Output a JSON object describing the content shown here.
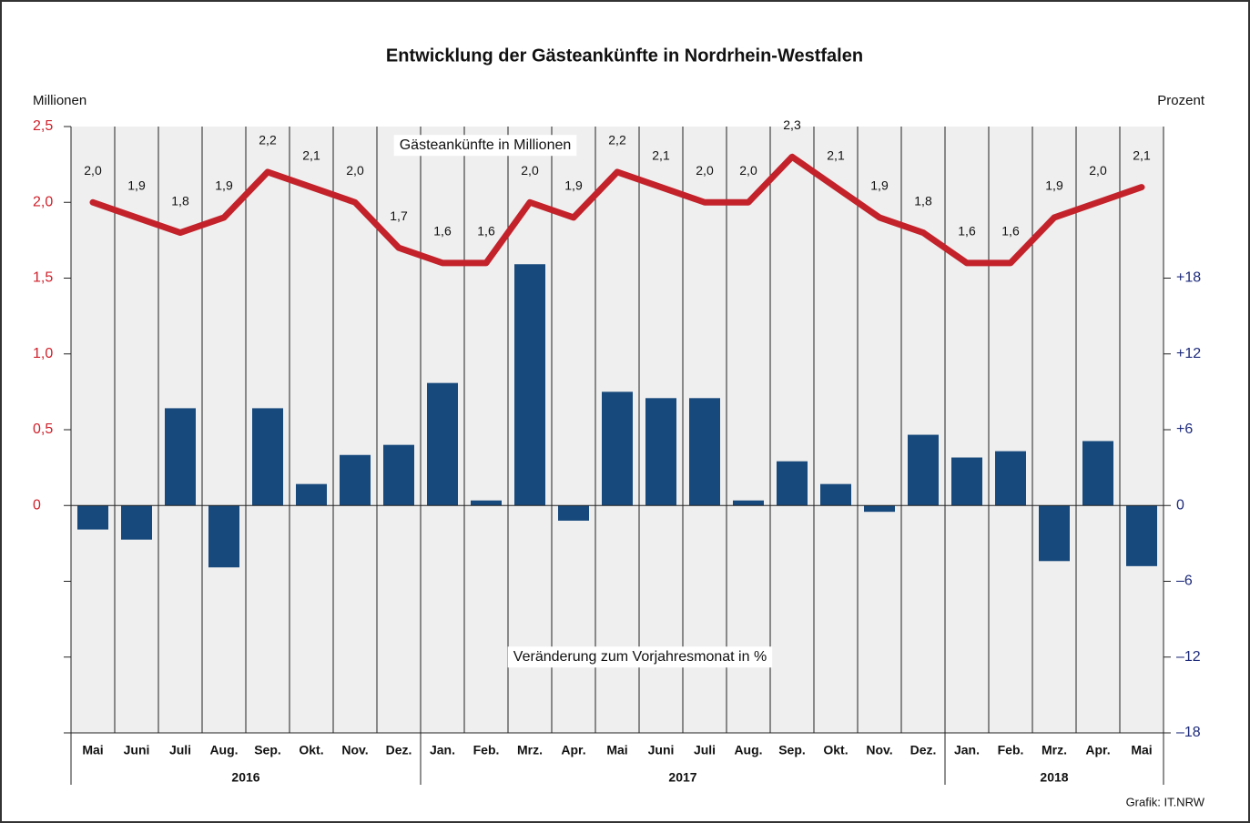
{
  "chart_data": {
    "type": "bar_line",
    "title": "Entwicklung der Gästeankünfte in Nordrhein-Westfalen",
    "y_label": "Millionen",
    "y2_label": "Prozent",
    "source": "Grafik: IT.NRW",
    "categories": [
      "Mai",
      "Juni",
      "Juli",
      "Aug.",
      "Sep.",
      "Okt.",
      "Nov.",
      "Dez.",
      "Jan.",
      "Feb.",
      "Mrz.",
      "Apr.",
      "Mai",
      "Juni",
      "Juli",
      "Aug.",
      "Sep.",
      "Okt.",
      "Nov.",
      "Dez.",
      "Jan.",
      "Feb.",
      "Mrz.",
      "Apr.",
      "Mai"
    ],
    "x_groups": [
      {
        "label": "2016",
        "count": 8
      },
      {
        "label": "2017",
        "count": 12
      },
      {
        "label": "2018",
        "count": 5
      }
    ],
    "series": [
      {
        "name": "Gästeankünfte in Millionen",
        "type": "line",
        "color": "#c4222b",
        "values": [
          2.0,
          1.9,
          1.8,
          1.9,
          2.2,
          2.1,
          2.0,
          1.7,
          1.6,
          1.6,
          2.0,
          1.9,
          2.2,
          2.1,
          2.0,
          2.0,
          2.3,
          2.1,
          1.9,
          1.8,
          1.6,
          1.6,
          1.9,
          2.0,
          2.1
        ],
        "value_labels": [
          "2,0",
          "1,9",
          "1,8",
          "1,9",
          "2,2",
          "2,1",
          "2,0",
          "1,7",
          "1,6",
          "1,6",
          "2,0",
          "1,9",
          "2,2",
          "2,1",
          "2,0",
          "2,0",
          "2,3",
          "2,1",
          "1,9",
          "1,8",
          "1,6",
          "1,6",
          "1,9",
          "2,0",
          "2,1"
        ]
      },
      {
        "name": "Veränderung zum Vorjahresmonat in %",
        "type": "bar",
        "axis": "y2",
        "color": "#17497c",
        "values": [
          -1.9,
          -2.7,
          7.7,
          -4.9,
          7.7,
          1.7,
          4.0,
          4.8,
          9.7,
          0.4,
          19.1,
          -1.2,
          9.0,
          8.5,
          8.5,
          0.4,
          3.5,
          1.7,
          -0.5,
          5.6,
          3.8,
          4.3,
          -4.4,
          5.1,
          -4.8
        ]
      }
    ],
    "ylim": [
      -1.5,
      2.5
    ],
    "yticks": [
      {
        "value": 0,
        "label": "0"
      },
      {
        "value": 0.5,
        "label": "0,5"
      },
      {
        "value": 1,
        "label": "1,0"
      },
      {
        "value": 1.5,
        "label": "1,5"
      },
      {
        "value": 2,
        "label": "2,0"
      },
      {
        "value": 2.5,
        "label": "2,5"
      }
    ],
    "y2lim": [
      -18,
      30
    ],
    "y2ticks": [
      {
        "value": 18,
        "label": "+18"
      },
      {
        "value": 12,
        "label": "+12"
      },
      {
        "value": 6,
        "label": "+6"
      },
      0,
      {
        "value": -6,
        "label": "–6"
      },
      {
        "value": -12,
        "label": "–12"
      },
      {
        "value": -18,
        "label": "–18"
      }
    ]
  }
}
